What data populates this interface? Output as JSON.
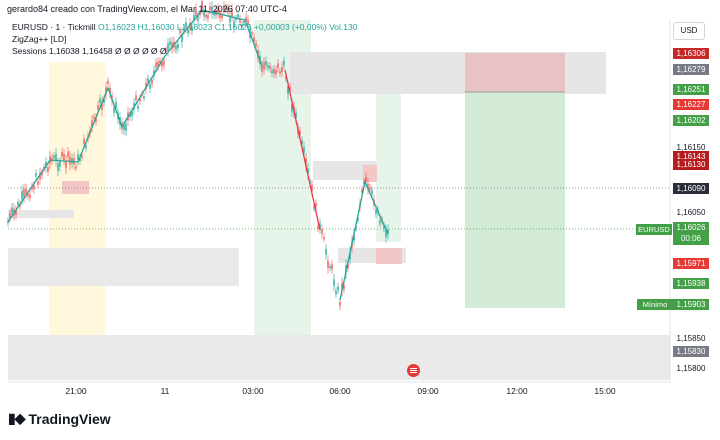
{
  "header": {
    "text": "gerardo84 creado con TradingView.com, el Mar 11, 2026 07:40 UTC-4"
  },
  "symbol_info": {
    "symbol": "EURUSD · 1 · Tickmill",
    "ohlc": "O1,16023 H1,16030 L1,16023 C1,16026 +0,00003 (+0,00%)",
    "volume": "Vol.130",
    "indicator1": "ZigZag++ [LD]",
    "indicator2": "Sessions 1,16038 1,16458 Ø Ø Ø Ø Ø Ø"
  },
  "currency": "USD",
  "price_labels": [
    {
      "text": "1,16306",
      "bg": "#c62828"
    },
    {
      "text": "1,16279",
      "bg": "#787b86"
    },
    {
      "text": "1,16251",
      "bg": "#43a047"
    },
    {
      "text": "1,16227",
      "bg": "#e53935"
    },
    {
      "text": "1,16202",
      "bg": "#43a047"
    },
    {
      "text": "1,16143",
      "bg": "#b71c1c"
    },
    {
      "text": "1,16130",
      "bg": "#b71c1c"
    },
    {
      "text": "1,16090",
      "bg": "#2a2e39"
    },
    {
      "text": "1,15971",
      "bg": "#e53935"
    },
    {
      "text": "1,15938",
      "bg": "#43a047"
    },
    {
      "text": "1,15903",
      "bg": "#43a047"
    },
    {
      "text": "1,15830",
      "bg": "#787b86"
    }
  ],
  "price_ticks": [
    "1,16150",
    "1,16050",
    "1,15850",
    "1,15800"
  ],
  "current_price": {
    "symbol": "EURUSD",
    "price": "1,16026",
    "countdown": "00:06"
  },
  "minimum_label": "Mínimo",
  "time_axis": [
    "21:00",
    "11",
    "03:00",
    "06:00",
    "09:00",
    "12:00",
    "15:00"
  ],
  "brand": "TradingView",
  "colors": {
    "up": "#26a69a",
    "down": "#ef5350",
    "zigzag_up": "#26a69a",
    "zigzag_down": "#f23645"
  }
}
